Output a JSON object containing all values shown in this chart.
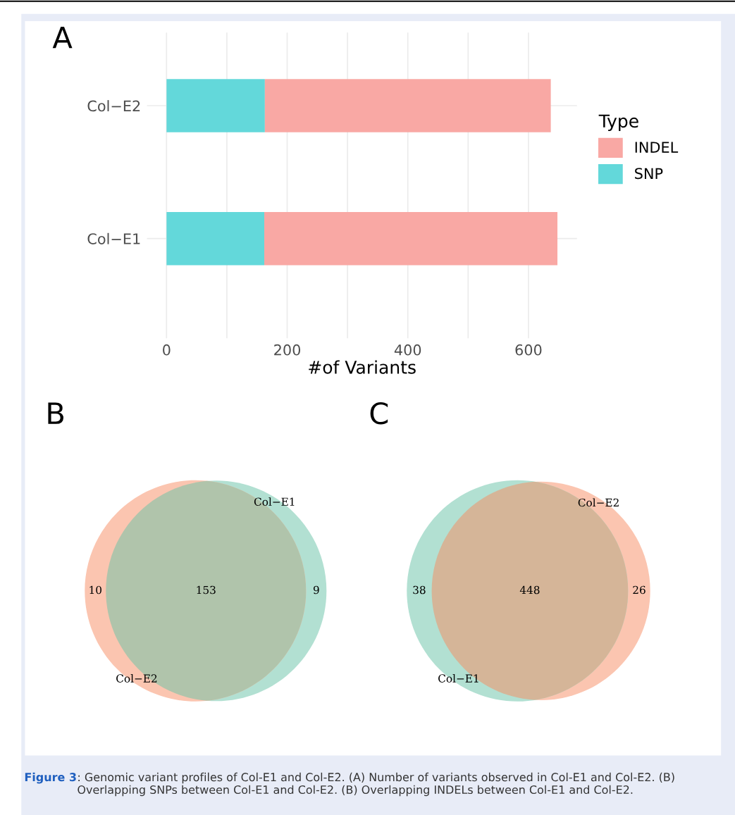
{
  "chart_data": [
    {
      "type": "bar",
      "title": "A",
      "orientation": "horizontal",
      "stacked": true,
      "categories": [
        "Col−E2",
        "Col−E1"
      ],
      "series": [
        {
          "name": "SNP",
          "color": "#63d8da",
          "values": [
            163,
            162
          ]
        },
        {
          "name": "INDEL",
          "color": "#f9a8a4",
          "values": [
            474,
            486
          ]
        }
      ],
      "xlabel": "#of Variants",
      "legend_title": "Type",
      "legend": "right",
      "xlim": [
        -32.4,
        680.4
      ],
      "xticks": [
        0,
        {
          "value": 100,
          "label": null
        },
        200,
        {
          "value": 300,
          "label": null
        },
        400,
        {
          "value": 500,
          "label": null
        },
        600
      ],
      "grid": true
    },
    {
      "type": "other",
      "title": "B",
      "categories": [
        null,
        null,
        null
      ],
      "values": [
        10,
        153,
        9
      ],
      "colors": [
        "#fbc5b0",
        "#b0c4ab",
        "#b2e0d2"
      ],
      "data_labels": true,
      "annotations": [
        "Col−E2",
        "Col−E1"
      ]
    },
    {
      "type": "other",
      "title": "C",
      "categories": [
        null,
        null,
        null
      ],
      "values": [
        38,
        448,
        26
      ],
      "colors": [
        "#b2e0d2",
        "#d5b598",
        "#fbc5b0"
      ],
      "data_labels": true,
      "annotations": [
        "Col−E1",
        "Col−E2",
        "Figure 3",
        ": Genomic variant profiles of Col-E1 and Col-E2. (A) Number of variants observed in Col-E1 and Col-E2. (B) Overlapping SNPs between Col-E1 and Col-E2. (B) Overlapping INDELs between Col-E1 and Col-E2."
      ]
    }
  ]
}
